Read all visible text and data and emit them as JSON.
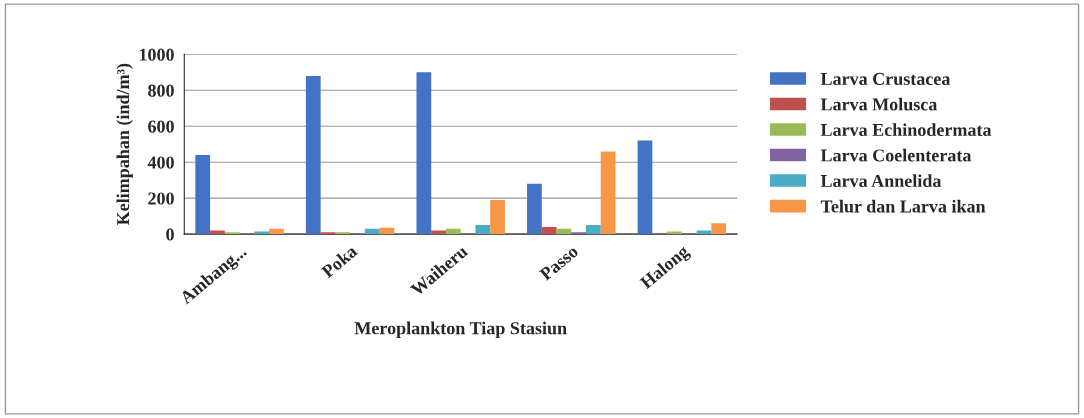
{
  "chart_data": {
    "type": "bar",
    "xlabel": "Meroplankton Tiap Stasiun",
    "ylabel": "Kelimpahan (ind/m³)",
    "categories": [
      "Ambang...",
      "Poka",
      "Waiheru",
      "Passo",
      "Halong"
    ],
    "series": [
      {
        "name": "Larva Crustacea",
        "color": "#4472c4",
        "values": [
          440,
          880,
          900,
          280,
          520
        ]
      },
      {
        "name": "Larva Molusca",
        "color": "#c0504d",
        "values": [
          20,
          10,
          20,
          40,
          5
        ]
      },
      {
        "name": "Larva Echinodermata",
        "color": "#9bbb59",
        "values": [
          10,
          10,
          30,
          30,
          15
        ]
      },
      {
        "name": "Larva Coelenterata",
        "color": "#8064a2",
        "values": [
          null,
          null,
          null,
          10,
          null
        ]
      },
      {
        "name": "Larva Annelida",
        "color": "#4bacc6",
        "values": [
          15,
          30,
          50,
          50,
          20
        ]
      },
      {
        "name": "Telur dan Larva ikan",
        "color": "#f79646",
        "values": [
          30,
          35,
          190,
          460,
          60
        ]
      }
    ],
    "ylim": [
      0,
      1000
    ],
    "yticks": [
      0,
      200,
      400,
      600,
      800,
      1000
    ],
    "grid": "y",
    "legend": "right"
  }
}
